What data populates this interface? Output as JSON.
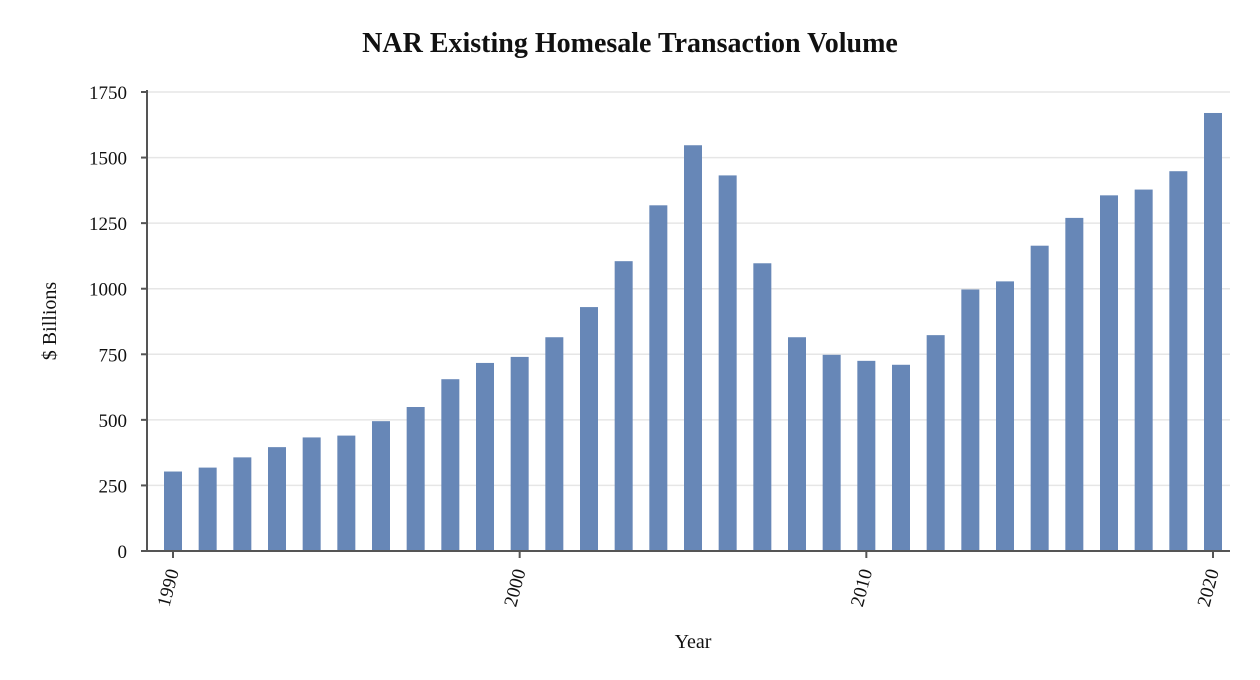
{
  "chart_data": {
    "type": "bar",
    "title": "NAR Existing Homesale Transaction Volume",
    "xlabel": "Year",
    "ylabel": "$ Billions",
    "ylim": [
      0,
      1750
    ],
    "yticks": [
      0,
      250,
      500,
      750,
      1000,
      1250,
      1500,
      1750
    ],
    "xticks": [
      1990,
      2000,
      2010,
      2020
    ],
    "grid": true,
    "color": "#6787b7",
    "x": [
      1990,
      1991,
      1992,
      1993,
      1994,
      1995,
      1996,
      1997,
      1998,
      1999,
      2000,
      2001,
      2002,
      2003,
      2004,
      2005,
      2006,
      2007,
      2008,
      2009,
      2010,
      2011,
      2012,
      2013,
      2014,
      2015,
      2016,
      2017,
      2018,
      2019,
      2020
    ],
    "values": [
      303,
      318,
      357,
      396,
      433,
      440,
      495,
      549,
      655,
      717,
      740,
      815,
      930,
      1105,
      1318,
      1547,
      1432,
      1097,
      815,
      748,
      725,
      710,
      823,
      997,
      1028,
      1164,
      1270,
      1356,
      1378,
      1448,
      1670
    ]
  }
}
